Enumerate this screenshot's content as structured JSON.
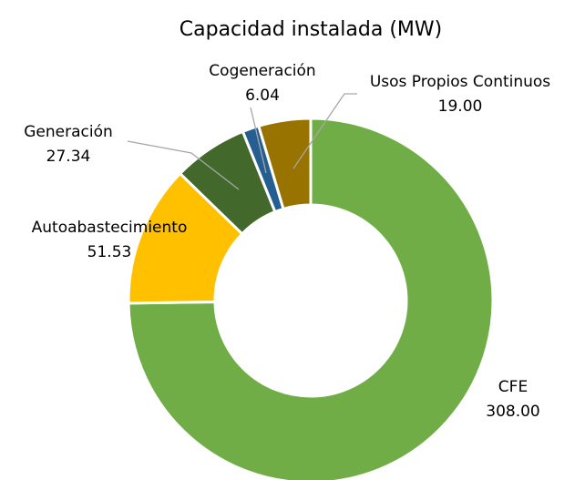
{
  "chart_data": {
    "type": "donut",
    "title": "Capacidad instalada (MW)",
    "categories": [
      "CFE",
      "Autoabastecimiento",
      "Generación",
      "Cogeneración",
      "Usos Propios Continuos"
    ],
    "values": [
      308.0,
      51.53,
      27.34,
      6.04,
      19.0
    ],
    "value_labels": [
      "308.00",
      "51.53",
      "27.34",
      "6.04",
      "19.00"
    ],
    "colors": [
      "#70ad47",
      "#ffc000",
      "#43682b",
      "#255e91",
      "#997300"
    ]
  }
}
